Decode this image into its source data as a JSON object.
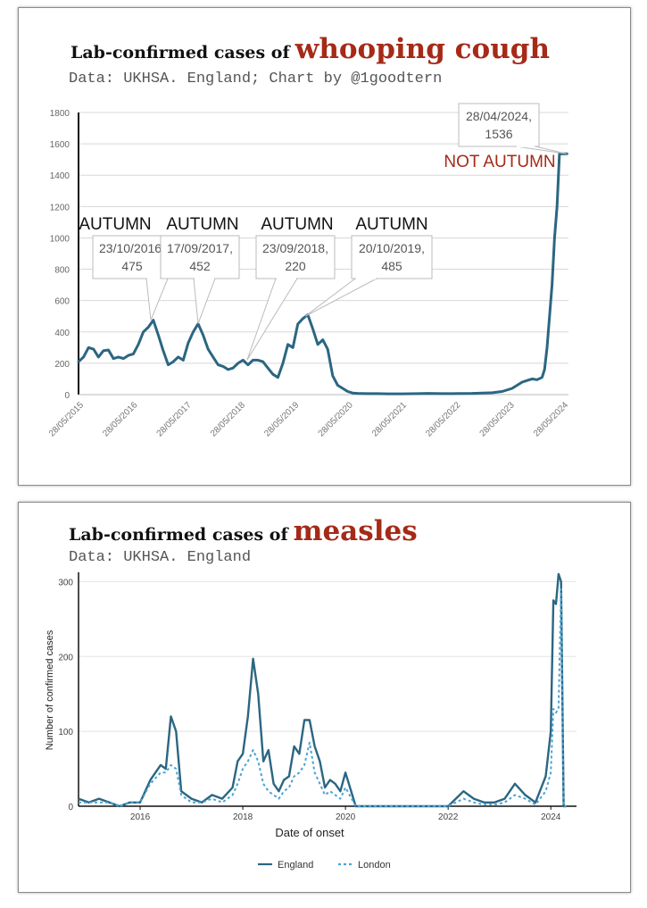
{
  "colors": {
    "title_highlight": "#a52a17",
    "england_line": "#2b6682",
    "london_line": "#4aa3d4",
    "callout_text": "#a52a17"
  },
  "panel1": {
    "title_lead": "Lab-confirmed cases of",
    "title_highlight": "whooping cough",
    "subtitle": "Data: UKHSA. England; Chart by @1goodtern",
    "autumn_labels": [
      "AUTUMN",
      "AUTUMN",
      "AUTUMN",
      "AUTUMN"
    ],
    "not_autumn_label": "NOT AUTUMN",
    "annotations": [
      {
        "line1": "23/10/2016,",
        "line2": "475"
      },
      {
        "line1": "17/09/2017,",
        "line2": "452"
      },
      {
        "line1": "23/09/2018,",
        "line2": "220"
      },
      {
        "line1": "20/10/2019,",
        "line2": "485"
      },
      {
        "line1": "28/04/2024,",
        "line2": "1536"
      }
    ]
  },
  "panel2": {
    "title_lead": "Lab-confirmed cases of",
    "title_highlight": "measles",
    "subtitle": "Data: UKHSA. England"
  },
  "chart_data": [
    {
      "type": "line",
      "title": "Lab-confirmed cases of whooping cough",
      "xlabel": "",
      "ylabel": "",
      "ylim": [
        0,
        1800
      ],
      "yticks": [
        0,
        200,
        400,
        600,
        800,
        1000,
        1200,
        1400,
        1600,
        1800
      ],
      "xticks": [
        "28/05/2015",
        "28/05/2016",
        "28/05/2017",
        "28/05/2018",
        "28/05/2019",
        "28/05/2020",
        "28/05/2021",
        "28/05/2022",
        "28/05/2023",
        "28/05/2024"
      ],
      "grid": true,
      "x": [
        2015.0,
        2015.1,
        2015.2,
        2015.3,
        2015.4,
        2015.5,
        2015.6,
        2015.7,
        2015.8,
        2015.9,
        2016.0,
        2016.1,
        2016.2,
        2016.3,
        2016.4,
        2016.5,
        2016.6,
        2016.7,
        2016.8,
        2016.9,
        2017.0,
        2017.1,
        2017.2,
        2017.3,
        2017.4,
        2017.5,
        2017.6,
        2017.7,
        2017.8,
        2017.9,
        2018.0,
        2018.1,
        2018.2,
        2018.3,
        2018.4,
        2018.5,
        2018.6,
        2018.7,
        2018.8,
        2018.9,
        2019.0,
        2019.1,
        2019.2,
        2019.3,
        2019.4,
        2019.5,
        2019.6,
        2019.7,
        2019.8,
        2019.9,
        2020.0,
        2020.1,
        2020.2,
        2020.3,
        2020.4,
        2020.5,
        2020.6,
        2020.8,
        2021.0,
        2021.2,
        2021.5,
        2021.8,
        2022.0,
        2022.3,
        2022.6,
        2022.9,
        2023.1,
        2023.3,
        2023.5,
        2023.7,
        2023.8,
        2023.9,
        2024.0,
        2024.1,
        2024.2,
        2024.3,
        2024.35,
        2024.4,
        2024.45,
        2024.5,
        2024.55,
        2024.6,
        2024.65,
        2024.7,
        2024.75,
        2024.8
      ],
      "series": [
        {
          "values": [
            210,
            240,
            300,
            290,
            240,
            280,
            285,
            230,
            240,
            230,
            250,
            260,
            320,
            400,
            430,
            475,
            380,
            280,
            190,
            210,
            240,
            220,
            330,
            400,
            452,
            380,
            290,
            240,
            190,
            180,
            160,
            170,
            200,
            220,
            190,
            220,
            220,
            210,
            170,
            130,
            110,
            200,
            320,
            300,
            450,
            485,
            510,
            420,
            320,
            350,
            290,
            120,
            60,
            40,
            20,
            10,
            8,
            6,
            6,
            5,
            5,
            6,
            8,
            6,
            7,
            8,
            10,
            12,
            20,
            40,
            60,
            80,
            90,
            100,
            95,
            110,
            160,
            300,
            500,
            700,
            1000,
            1200,
            1536,
            1536,
            1536,
            1536
          ]
        }
      ],
      "annotations": [
        {
          "x": "23/10/2016",
          "y": 475
        },
        {
          "x": "17/09/2017",
          "y": 452
        },
        {
          "x": "23/09/2018",
          "y": 220
        },
        {
          "x": "20/10/2019",
          "y": 485
        },
        {
          "x": "28/04/2024",
          "y": 1536
        }
      ]
    },
    {
      "type": "line",
      "title": "Lab-confirmed cases of measles",
      "xlabel": "Date of onset",
      "ylabel": "Number of confirmed cases",
      "ylim": [
        0,
        310
      ],
      "yticks": [
        0,
        100,
        200,
        300
      ],
      "xticks": [
        "2016",
        "2018",
        "2020",
        "2022",
        "2024"
      ],
      "grid": true,
      "legend": "bottom",
      "x": [
        2014.8,
        2015.0,
        2015.2,
        2015.4,
        2015.6,
        2015.8,
        2016.0,
        2016.2,
        2016.4,
        2016.5,
        2016.6,
        2016.7,
        2016.8,
        2017.0,
        2017.2,
        2017.4,
        2017.6,
        2017.8,
        2017.9,
        2018.0,
        2018.1,
        2018.2,
        2018.3,
        2018.4,
        2018.5,
        2018.6,
        2018.7,
        2018.8,
        2018.9,
        2019.0,
        2019.1,
        2019.2,
        2019.3,
        2019.4,
        2019.5,
        2019.6,
        2019.7,
        2019.8,
        2019.9,
        2020.0,
        2020.2,
        2020.5,
        2021.0,
        2021.5,
        2022.0,
        2022.3,
        2022.5,
        2022.7,
        2022.9,
        2023.1,
        2023.3,
        2023.5,
        2023.7,
        2023.9,
        2024.0,
        2024.05,
        2024.1,
        2024.15,
        2024.2,
        2024.25,
        2024.3
      ],
      "series": [
        {
          "name": "England",
          "values": [
            10,
            5,
            10,
            5,
            0,
            5,
            5,
            35,
            55,
            50,
            120,
            100,
            20,
            10,
            5,
            15,
            10,
            25,
            60,
            70,
            120,
            197,
            150,
            60,
            75,
            30,
            20,
            35,
            40,
            80,
            70,
            115,
            115,
            80,
            60,
            25,
            35,
            30,
            20,
            45,
            0,
            0,
            0,
            0,
            0,
            20,
            10,
            5,
            5,
            10,
            30,
            15,
            5,
            40,
            100,
            275,
            270,
            310,
            300,
            0,
            0
          ]
        },
        {
          "name": "London",
          "values": [
            5,
            5,
            5,
            5,
            0,
            5,
            5,
            30,
            45,
            45,
            55,
            50,
            15,
            5,
            5,
            10,
            5,
            15,
            30,
            50,
            60,
            75,
            60,
            30,
            20,
            15,
            10,
            20,
            25,
            40,
            45,
            55,
            85,
            45,
            30,
            15,
            20,
            15,
            10,
            25,
            0,
            0,
            0,
            0,
            0,
            10,
            5,
            2,
            2,
            5,
            15,
            10,
            2,
            20,
            45,
            130,
            125,
            130,
            290,
            0,
            0
          ]
        }
      ]
    }
  ]
}
